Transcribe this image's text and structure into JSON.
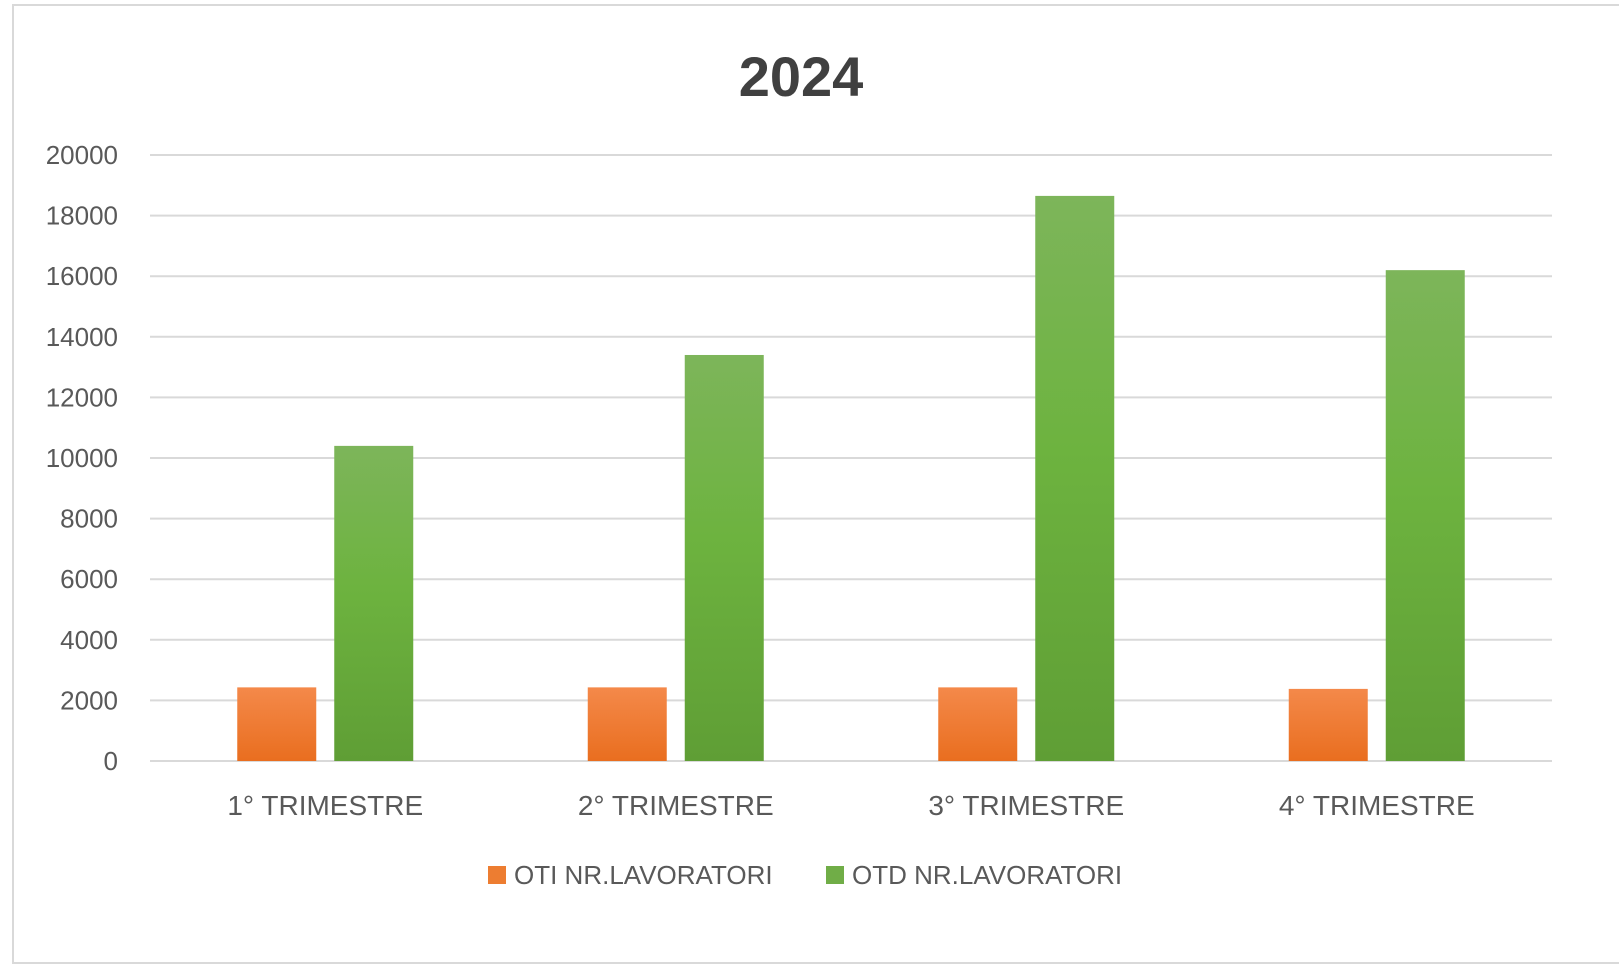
{
  "chart_data": {
    "type": "bar",
    "title": "2024",
    "xlabel": "",
    "ylabel": "",
    "categories": [
      "1° TRIMESTRE",
      "2° TRIMESTRE",
      "3° TRIMESTRE",
      "4° TRIMESTRE"
    ],
    "series": [
      {
        "name": "OTI NR.LAVORATORI",
        "values": [
          2430,
          2430,
          2430,
          2380
        ],
        "color": "#ed7d31"
      },
      {
        "name": "OTD NR.LAVORATORI",
        "values": [
          10400,
          13400,
          18650,
          16200
        ],
        "color": "#70ad47"
      }
    ],
    "ylim": [
      0,
      20000
    ],
    "yticks": [
      0,
      2000,
      4000,
      6000,
      8000,
      10000,
      12000,
      14000,
      16000,
      18000,
      20000
    ],
    "grid": true,
    "legend_position": "bottom"
  }
}
